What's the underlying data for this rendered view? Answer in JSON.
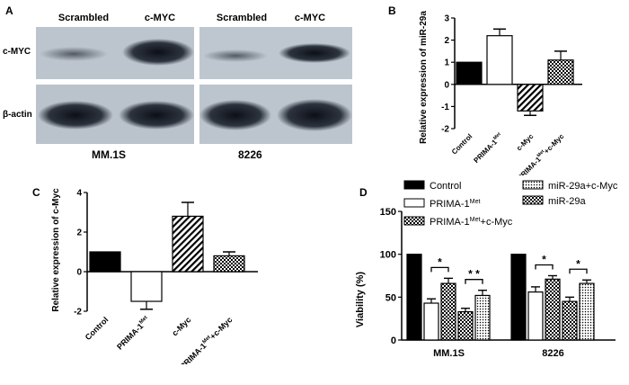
{
  "panelA": {
    "letter": "A",
    "lane_labels": [
      "Scrambled",
      "c-MYC",
      "Scrambled",
      "c-MYC"
    ],
    "row_labels": [
      "c-MYC",
      "β-actin"
    ],
    "cell_lines": [
      "MM.1S",
      "8226"
    ]
  },
  "panelB": {
    "letter": "B",
    "ylabel": "Relative expression of miR-29a",
    "ytick_labels": [
      "-2",
      "-1",
      "0",
      "1",
      "2",
      "3"
    ],
    "xtick_labels": [
      "Control",
      "PRIMA-1Met",
      "c-Myc",
      "PRIMA-1Met+c-Myc"
    ]
  },
  "panelC": {
    "letter": "C",
    "ylabel": "Relative expression of c-Myc",
    "ytick_labels": [
      "-2",
      "0",
      "2",
      "4"
    ],
    "xtick_labels": [
      "Control",
      "PRIMA-1Met",
      "c-Myc",
      "PRIMA-1Met+c-Myc"
    ]
  },
  "panelD": {
    "letter": "D",
    "ylabel": "Viability (%)",
    "ytick_labels": [
      "0",
      "50",
      "100",
      "150"
    ],
    "group_labels": [
      "MM.1S",
      "8226"
    ],
    "legend": [
      "Control",
      "PRIMA-1Met",
      "PRIMA-1Met+c-Myc",
      "miR-29a+c-Myc",
      "miR-29a"
    ],
    "sig_labels": [
      "*",
      "* *",
      "*",
      "*"
    ]
  },
  "chart_data": [
    {
      "panel": "B",
      "type": "bar",
      "categories": [
        "Control",
        "PRIMA-1Met",
        "c-Myc",
        "PRIMA-1Met+c-Myc"
      ],
      "values": [
        1.0,
        2.2,
        -1.2,
        1.1
      ],
      "errors": [
        0.0,
        0.3,
        0.2,
        0.4
      ],
      "fills": [
        "black",
        "white",
        "diagonal-hatch",
        "checker"
      ],
      "ylabel": "Relative expression of miR-29a",
      "ylim": [
        -2,
        3
      ]
    },
    {
      "panel": "C",
      "type": "bar",
      "categories": [
        "Control",
        "PRIMA-1Met",
        "c-Myc",
        "PRIMA-1Met+c-Myc"
      ],
      "values": [
        1.0,
        -1.5,
        2.8,
        0.8
      ],
      "errors": [
        0.0,
        0.4,
        0.7,
        0.2
      ],
      "fills": [
        "black",
        "white",
        "diagonal-hatch",
        "checker"
      ],
      "ylabel": "Relative expression of c-Myc",
      "ylim": [
        -2,
        4
      ]
    },
    {
      "panel": "D",
      "type": "bar",
      "categories": [
        "MM.1S",
        "8226"
      ],
      "series": [
        {
          "name": "Control",
          "values": [
            100,
            100
          ],
          "errors": [
            0,
            0
          ],
          "fill": "black"
        },
        {
          "name": "PRIMA-1Met",
          "values": [
            43,
            56
          ],
          "errors": [
            5,
            6
          ],
          "fill": "white"
        },
        {
          "name": "PRIMA-1Met+c-Myc",
          "values": [
            66,
            71
          ],
          "errors": [
            6,
            4
          ],
          "fill": "checker"
        },
        {
          "name": "miR-29a",
          "values": [
            33,
            45
          ],
          "errors": [
            4,
            5
          ],
          "fill": "checker"
        },
        {
          "name": "miR-29a+c-Myc",
          "values": [
            52,
            66
          ],
          "errors": [
            6,
            4
          ],
          "fill": "dots"
        }
      ],
      "ylabel": "Viability (%)",
      "ylim": [
        0,
        150
      ]
    }
  ]
}
